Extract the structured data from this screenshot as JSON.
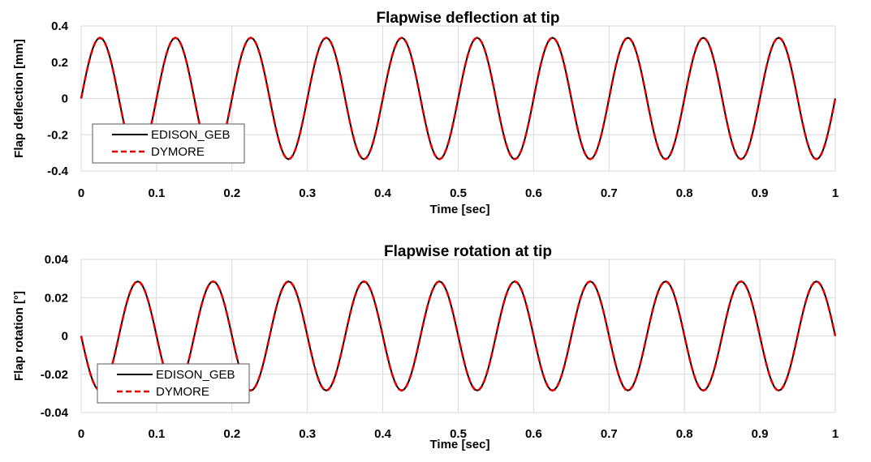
{
  "chart_data": [
    {
      "type": "line",
      "title": "Flapwise deflection at tip",
      "xlabel": "Time [sec]",
      "ylabel": "Flap deflection [mm]",
      "xlim": [
        0,
        1
      ],
      "ylim": [
        -0.4,
        0.4
      ],
      "x_ticks": [
        "0",
        "0.1",
        "0.2",
        "0.3",
        "0.4",
        "0.5",
        "0.6",
        "0.7",
        "0.8",
        "0.9",
        "1"
      ],
      "y_ticks": [
        "0.4",
        "0.2",
        "0",
        "-0.2",
        "-0.4"
      ],
      "y_tick_values": [
        0.4,
        0.2,
        0,
        -0.2,
        -0.4
      ],
      "grid": true,
      "legend_position": "bottom-left",
      "series": [
        {
          "name": "EDISON_GEB",
          "color": "#000000",
          "style": "solid",
          "x": [
            0,
            0.025,
            0.05,
            0.075,
            0.1,
            0.125,
            0.15,
            0.175,
            0.2,
            0.225,
            0.25,
            0.275,
            0.3,
            0.325,
            0.35,
            0.375,
            0.4,
            0.425,
            0.45,
            0.475,
            0.5,
            0.525,
            0.55,
            0.575,
            0.6,
            0.625,
            0.65,
            0.675,
            0.7,
            0.725,
            0.75,
            0.775,
            0.8,
            0.825,
            0.85,
            0.875,
            0.9,
            0.925,
            0.95,
            0.975,
            1
          ],
          "y": [
            0,
            0.335,
            0,
            -0.335,
            0,
            0.335,
            0,
            -0.335,
            0,
            0.335,
            0,
            -0.335,
            0,
            0.335,
            0,
            -0.335,
            0,
            0.335,
            0,
            -0.335,
            0,
            0.335,
            0,
            -0.335,
            0,
            0.335,
            0,
            -0.335,
            0,
            0.335,
            0,
            -0.335,
            0,
            0.335,
            0,
            -0.335,
            0,
            0.335,
            0,
            -0.335,
            0
          ]
        },
        {
          "name": "DYMORE",
          "color": "#e00000",
          "style": "dashed",
          "x": [
            0,
            0.025,
            0.05,
            0.075,
            0.1,
            0.125,
            0.15,
            0.175,
            0.2,
            0.225,
            0.25,
            0.275,
            0.3,
            0.325,
            0.35,
            0.375,
            0.4,
            0.425,
            0.45,
            0.475,
            0.5,
            0.525,
            0.55,
            0.575,
            0.6,
            0.625,
            0.65,
            0.675,
            0.7,
            0.725,
            0.75,
            0.775,
            0.8,
            0.825,
            0.85,
            0.875,
            0.9,
            0.925,
            0.95,
            0.975,
            1
          ],
          "y": [
            0,
            0.335,
            0,
            -0.335,
            0,
            0.335,
            0,
            -0.335,
            0,
            0.335,
            0,
            -0.335,
            0,
            0.335,
            0,
            -0.335,
            0,
            0.335,
            0,
            -0.335,
            0,
            0.335,
            0,
            -0.335,
            0,
            0.335,
            0,
            -0.335,
            0,
            0.335,
            0,
            -0.335,
            0,
            0.335,
            0,
            -0.335,
            0,
            0.335,
            0,
            -0.335,
            0
          ]
        }
      ]
    },
    {
      "type": "line",
      "title": "Flapwise rotation at tip",
      "xlabel": "Time [sec]",
      "ylabel": "Flap rotation [°]",
      "xlim": [
        0,
        1
      ],
      "ylim": [
        -0.04,
        0.04
      ],
      "x_ticks": [
        "0",
        "0.1",
        "0.2",
        "0.3",
        "0.4",
        "0.5",
        "0.6",
        "0.7",
        "0.8",
        "0.9",
        "1"
      ],
      "y_ticks": [
        "0.04",
        "0.02",
        "0",
        "-0.02",
        "-0.04"
      ],
      "y_tick_values": [
        0.04,
        0.02,
        0,
        -0.02,
        -0.04
      ],
      "grid": true,
      "legend_position": "bottom-left",
      "series": [
        {
          "name": "EDISON_GEB",
          "color": "#000000",
          "style": "solid",
          "x": [
            0,
            0.025,
            0.05,
            0.075,
            0.1,
            0.125,
            0.15,
            0.175,
            0.2,
            0.225,
            0.25,
            0.275,
            0.3,
            0.325,
            0.35,
            0.375,
            0.4,
            0.425,
            0.45,
            0.475,
            0.5,
            0.525,
            0.55,
            0.575,
            0.6,
            0.625,
            0.65,
            0.675,
            0.7,
            0.725,
            0.75,
            0.775,
            0.8,
            0.825,
            0.85,
            0.875,
            0.9,
            0.925,
            0.95,
            0.975,
            1
          ],
          "y": [
            0,
            -0.0285,
            0,
            0.0285,
            0,
            -0.0285,
            0,
            0.0285,
            0,
            -0.0285,
            0,
            0.0285,
            0,
            -0.0285,
            0,
            0.0285,
            0,
            -0.0285,
            0,
            0.0285,
            0,
            -0.0285,
            0,
            0.0285,
            0,
            -0.0285,
            0,
            0.0285,
            0,
            -0.0285,
            0,
            0.0285,
            0,
            -0.0285,
            0,
            0.0285,
            0,
            -0.0285,
            0,
            0.0285,
            0
          ]
        },
        {
          "name": "DYMORE",
          "color": "#e00000",
          "style": "dashed",
          "x": [
            0,
            0.025,
            0.05,
            0.075,
            0.1,
            0.125,
            0.15,
            0.175,
            0.2,
            0.225,
            0.25,
            0.275,
            0.3,
            0.325,
            0.35,
            0.375,
            0.4,
            0.425,
            0.45,
            0.475,
            0.5,
            0.525,
            0.55,
            0.575,
            0.6,
            0.625,
            0.65,
            0.675,
            0.7,
            0.725,
            0.75,
            0.775,
            0.8,
            0.825,
            0.85,
            0.875,
            0.9,
            0.925,
            0.95,
            0.975,
            1
          ],
          "y": [
            0,
            -0.0285,
            0,
            0.0285,
            0,
            -0.0285,
            0,
            0.0285,
            0,
            -0.0285,
            0,
            0.0285,
            0,
            -0.0285,
            0,
            0.0285,
            0,
            -0.0285,
            0,
            0.0285,
            0,
            -0.0285,
            0,
            0.0285,
            0,
            -0.0285,
            0,
            0.0285,
            0,
            -0.0285,
            0,
            0.0285,
            0,
            -0.0285,
            0,
            0.0285,
            0,
            -0.0285,
            0,
            0.0285,
            0
          ]
        }
      ]
    }
  ]
}
